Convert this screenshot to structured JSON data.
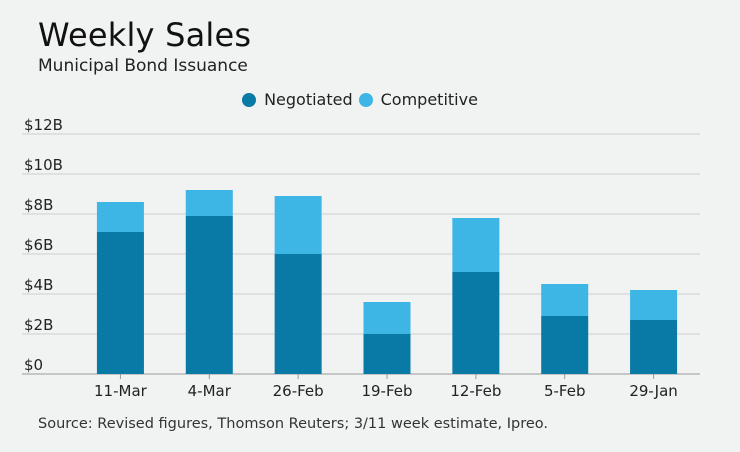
{
  "title": "Weekly Sales",
  "subtitle": "Municipal Bond Issuance",
  "source": "Source: Revised figures, Thomson Reuters; 3/11 week estimate, Ipreo.",
  "colors": {
    "negotiated": "#0979a6",
    "competitive": "#3db6e6",
    "grid": "#cfcfcf",
    "axis": "#9a9a9a"
  },
  "chart_data": {
    "type": "bar",
    "stacked": true,
    "categories": [
      "11-Mar",
      "4-Mar",
      "26-Feb",
      "19-Feb",
      "12-Feb",
      "5-Feb",
      "29-Jan"
    ],
    "series": [
      {
        "name": "Negotiated",
        "values": [
          7.1,
          7.9,
          6.0,
          2.0,
          5.1,
          2.9,
          2.7
        ]
      },
      {
        "name": "Competitive",
        "values": [
          1.5,
          1.3,
          2.9,
          1.6,
          2.7,
          1.6,
          1.5
        ]
      }
    ],
    "yticks": [
      "$0",
      "$2B",
      "$4B",
      "$6B",
      "$8B",
      "$10B",
      "$12B"
    ],
    "ylim": [
      0,
      12
    ],
    "legend_position": "top-center",
    "grid": true
  }
}
